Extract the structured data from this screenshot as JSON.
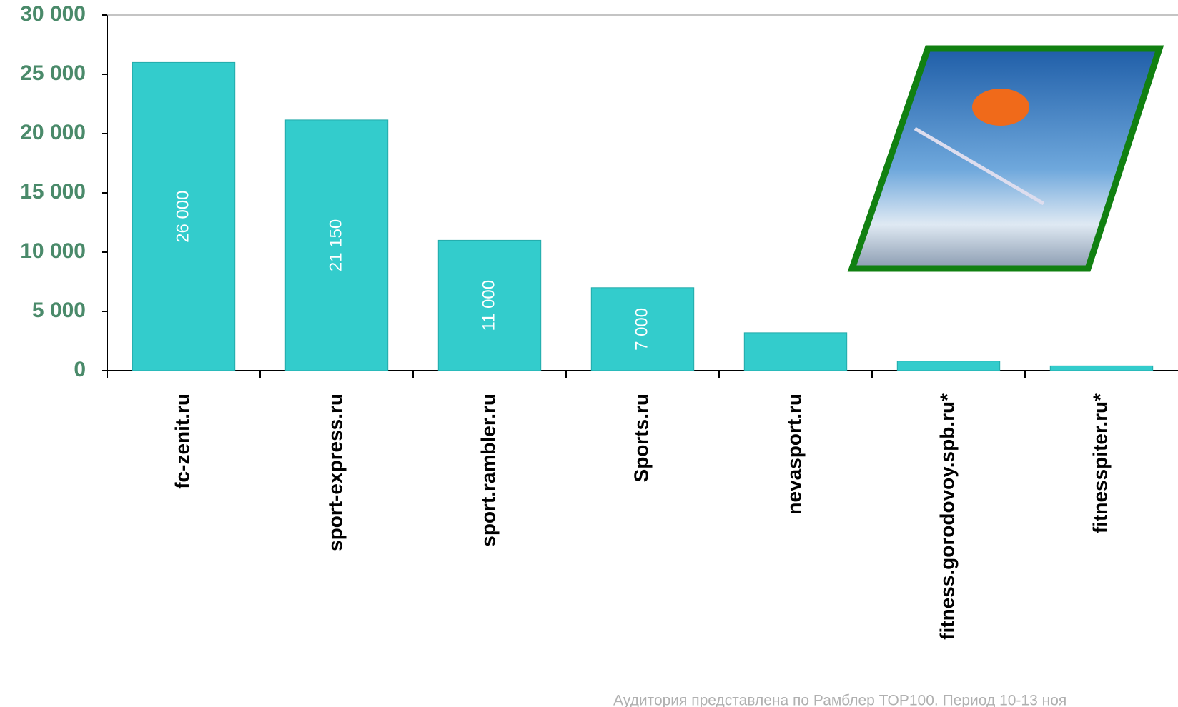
{
  "chart_data": {
    "type": "bar",
    "categories": [
      "fc-zenit.ru",
      "sport-express.ru",
      "sport.rambler.ru",
      "Sports.ru",
      "nevasport.ru",
      "fitness.gorodovoy.spb.ru*",
      "fitnesspiter.ru*"
    ],
    "values": [
      26000,
      21150,
      11000,
      7000,
      3200,
      800,
      400
    ],
    "value_labels": [
      "26 000",
      "21 150",
      "11 000",
      "7 000",
      null,
      null,
      null
    ],
    "color": "#33cccc",
    "ylim": [
      0,
      30000
    ],
    "yticks": [
      0,
      {
        "value": 5000,
        "label": "5 000"
      },
      {
        "value": 10000,
        "label": "10 000"
      },
      {
        "value": 15000,
        "label": "15 000"
      },
      {
        "value": 20000,
        "label": "20 000"
      },
      {
        "value": 25000,
        "label": "25 000"
      },
      {
        "value": 30000,
        "label": "30 000"
      }
    ],
    "footnote": "Аудитория представлена по Рамблер ТОР100. Период 10-13 ноя"
  }
}
